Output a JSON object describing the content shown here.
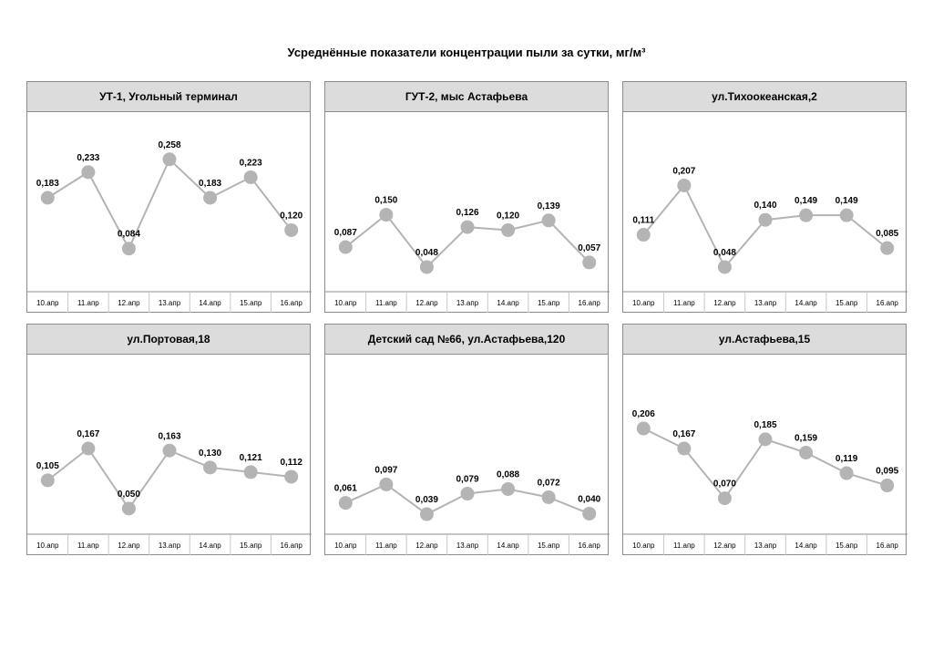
{
  "title": "Усреднённые показатели концентрации пыли за сутки, мг/м³",
  "chart_data": [
    {
      "type": "line",
      "title": "УТ-1, Угольный терминал",
      "categories": [
        "10.апр",
        "11.апр",
        "12.апр",
        "13.апр",
        "14.апр",
        "15.апр",
        "16.апр"
      ],
      "values": [
        0.183,
        0.233,
        0.084,
        0.258,
        0.183,
        0.223,
        0.12
      ],
      "labels": [
        "0,183",
        "0,233",
        "0,084",
        "0,258",
        "0,183",
        "0,223",
        "0,120"
      ],
      "ylim": [
        0,
        0.35
      ]
    },
    {
      "type": "line",
      "title": "ГУТ-2, мыс Астафьева",
      "categories": [
        "10.апр",
        "11.апр",
        "12.апр",
        "13.апр",
        "14.апр",
        "15.апр",
        "16.апр"
      ],
      "values": [
        0.087,
        0.15,
        0.048,
        0.126,
        0.12,
        0.139,
        0.057
      ],
      "labels": [
        "0,087",
        "0,150",
        "0,048",
        "0,126",
        "0,120",
        "0,139",
        "0,057"
      ],
      "ylim": [
        0,
        0.35
      ]
    },
    {
      "type": "line",
      "title": "ул.Тихоокеанская,2",
      "categories": [
        "10.апр",
        "11.апр",
        "12.апр",
        "13.апр",
        "14.апр",
        "15.апр",
        "16.апр"
      ],
      "values": [
        0.111,
        0.207,
        0.048,
        0.14,
        0.149,
        0.149,
        0.085
      ],
      "labels": [
        "0,111",
        "0,207",
        "0,048",
        "0,140",
        "0,149",
        "0,149",
        "0,085"
      ],
      "ylim": [
        0,
        0.35
      ]
    },
    {
      "type": "line",
      "title": "ул.Портовая,18",
      "categories": [
        "10.апр",
        "11.апр",
        "12.апр",
        "13.апр",
        "14.апр",
        "15.апр",
        "16.апр"
      ],
      "values": [
        0.105,
        0.167,
        0.05,
        0.163,
        0.13,
        0.121,
        0.112
      ],
      "labels": [
        "0,105",
        "0,167",
        "0,050",
        "0,163",
        "0,130",
        "0,121",
        "0,112"
      ],
      "ylim": [
        0,
        0.35
      ]
    },
    {
      "type": "line",
      "title": "Детский сад №66, ул.Астафьева,120",
      "categories": [
        "10.апр",
        "11.апр",
        "12.апр",
        "13.апр",
        "14.апр",
        "15.апр",
        "16.апр"
      ],
      "values": [
        0.061,
        0.097,
        0.039,
        0.079,
        0.088,
        0.072,
        0.04
      ],
      "labels": [
        "0,061",
        "0,097",
        "0,039",
        "0,079",
        "0,088",
        "0,072",
        "0,040"
      ],
      "ylim": [
        0,
        0.35
      ]
    },
    {
      "type": "line",
      "title": "ул.Астафьева,15",
      "categories": [
        "10.апр",
        "11.апр",
        "12.апр",
        "13.апр",
        "14.апр",
        "15.апр",
        "16.апр"
      ],
      "values": [
        0.206,
        0.167,
        0.07,
        0.185,
        0.159,
        0.119,
        0.095
      ],
      "labels": [
        "0,206",
        "0,167",
        "0,070",
        "0,185",
        "0,159",
        "0,119",
        "0,095"
      ],
      "ylim": [
        0,
        0.35
      ]
    }
  ],
  "colors": {
    "line": "#b4b4b4",
    "marker": "#b4b4b4",
    "header_bg": "#dcdcdc",
    "border": "#8c8c8c"
  }
}
